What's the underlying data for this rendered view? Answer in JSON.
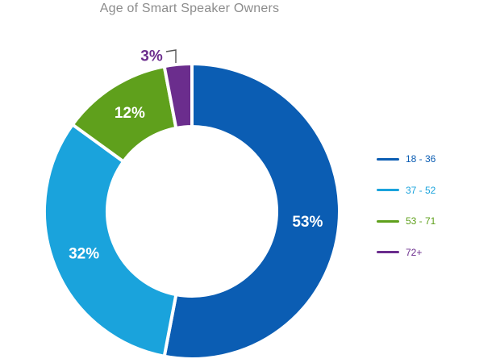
{
  "chart_data": {
    "type": "pie",
    "title": "Age of Smart Speaker Owners",
    "categories": [
      "18 - 36",
      "37 - 52",
      "53 - 71",
      "72+"
    ],
    "values": [
      53,
      32,
      12,
      3
    ],
    "value_labels": [
      "53%",
      "32%",
      "12%",
      "3%"
    ],
    "colors": [
      "#0b5db3",
      "#1aa3dc",
      "#5fa01c",
      "#6b2d8d"
    ],
    "legend_position": "right",
    "style": "donut"
  }
}
